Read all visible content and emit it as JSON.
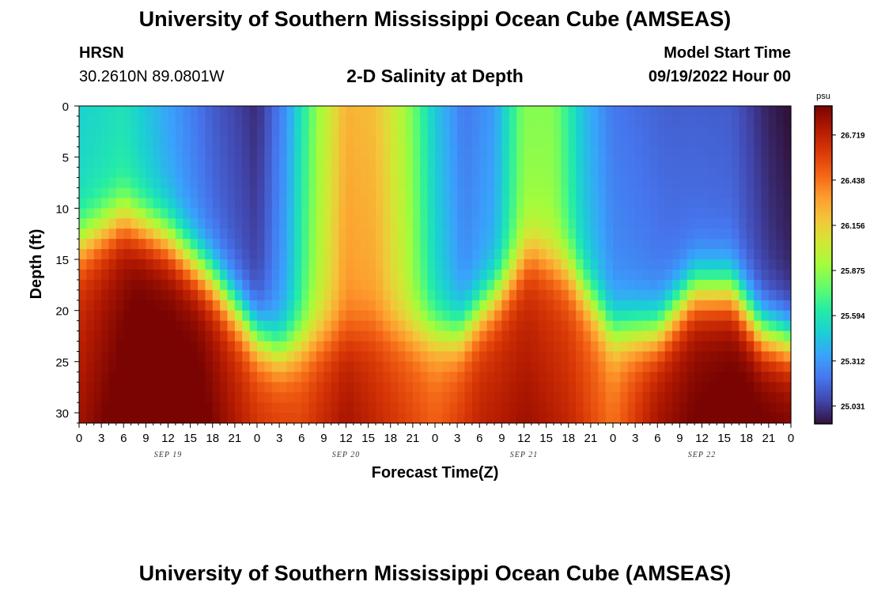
{
  "header": {
    "title": "University of Southern Mississippi Ocean Cube (AMSEAS)",
    "station_name": "HRSN",
    "coordinates": "30.2610N  89.0801W",
    "plot_title": "2-D Salinity at Depth",
    "model_start_label": "Model Start Time",
    "model_start_value": "09/19/2022 Hour 00"
  },
  "footer": {
    "title": "University of Southern Mississippi Ocean Cube (AMSEAS)"
  },
  "chart_data": {
    "type": "heatmap",
    "title": "2-D Salinity at Depth",
    "xlabel": "Forecast Time(Z)",
    "ylabel": "Depth (ft)",
    "x_range_hours": [
      0,
      96
    ],
    "ylim": [
      0,
      31
    ],
    "y_inverted": true,
    "x_tick_labels": [
      "0",
      "3",
      "6",
      "9",
      "12",
      "15",
      "18",
      "21",
      "0",
      "3",
      "6",
      "9",
      "12",
      "15",
      "18",
      "21",
      "0",
      "3",
      "6",
      "9",
      "12",
      "15",
      "18",
      "21",
      "0",
      "3",
      "6",
      "9",
      "12",
      "15",
      "18",
      "21",
      "0"
    ],
    "y_ticks": [
      0,
      5,
      10,
      15,
      20,
      25,
      30
    ],
    "y_tick_labels": [
      "0",
      "5",
      "10",
      "15",
      "20",
      "25",
      "30"
    ],
    "date_labels": [
      {
        "label": "SEP 19",
        "hour": 12
      },
      {
        "label": "SEP 20",
        "hour": 36
      },
      {
        "label": "SEP 21",
        "hour": 60
      },
      {
        "label": "SEP 22",
        "hour": 84
      }
    ],
    "colorbar": {
      "unit": "psu",
      "min": 24.92,
      "max": 26.9,
      "labels": [
        "26.719",
        "26.438",
        "26.156",
        "25.875",
        "25.594",
        "25.312",
        "25.031"
      ],
      "colormap": [
        "#30123b",
        "#4145ab",
        "#4675ed",
        "#39a2fc",
        "#1bcfd4",
        "#24eca6",
        "#61fc6c",
        "#a4fc3b",
        "#d1e834",
        "#f3c63a",
        "#fe9b2d",
        "#f36315",
        "#d93806",
        "#b11901",
        "#7a0402"
      ]
    },
    "halocline_depth_ft_by_hour": [
      {
        "hour": 0,
        "depth": 13.5
      },
      {
        "hour": 6,
        "depth": 11
      },
      {
        "hour": 12,
        "depth": 13
      },
      {
        "hour": 18,
        "depth": 17
      },
      {
        "hour": 24,
        "depth": 22.5
      },
      {
        "hour": 27,
        "depth": 24
      },
      {
        "hour": 33,
        "depth": 22.5
      },
      {
        "hour": 39,
        "depth": 21.5
      },
      {
        "hour": 45,
        "depth": 22
      },
      {
        "hour": 51,
        "depth": 22.5
      },
      {
        "hour": 57,
        "depth": 18
      },
      {
        "hour": 61,
        "depth": 14
      },
      {
        "hour": 66,
        "depth": 16
      },
      {
        "hour": 72,
        "depth": 22
      },
      {
        "hour": 78,
        "depth": 22
      },
      {
        "hour": 83,
        "depth": 18
      },
      {
        "hour": 88,
        "depth": 18
      },
      {
        "hour": 92,
        "depth": 22
      },
      {
        "hour": 96,
        "depth": 23
      }
    ],
    "upper_salinity_psu_by_hour": [
      {
        "hour": 0,
        "psu": 25.55
      },
      {
        "hour": 6,
        "psu": 25.62
      },
      {
        "hour": 12,
        "psu": 25.4
      },
      {
        "hour": 18,
        "psu": 25.2
      },
      {
        "hour": 24,
        "psu": 25.08
      },
      {
        "hour": 28,
        "psu": 25.4
      },
      {
        "hour": 32,
        "psu": 25.95
      },
      {
        "hour": 36,
        "psu": 26.35
      },
      {
        "hour": 40,
        "psu": 26.3
      },
      {
        "hour": 44,
        "psu": 26.0
      },
      {
        "hour": 48,
        "psu": 25.55
      },
      {
        "hour": 52,
        "psu": 25.3
      },
      {
        "hour": 56,
        "psu": 25.4
      },
      {
        "hour": 60,
        "psu": 25.9
      },
      {
        "hour": 64,
        "psu": 25.9
      },
      {
        "hour": 68,
        "psu": 25.5
      },
      {
        "hour": 72,
        "psu": 25.3
      },
      {
        "hour": 80,
        "psu": 25.22
      },
      {
        "hour": 88,
        "psu": 25.2
      },
      {
        "hour": 93,
        "psu": 25.05
      },
      {
        "hour": 96,
        "psu": 25.0
      }
    ],
    "deep_salinity_psu_by_hour": [
      {
        "hour": 0,
        "psu": 26.62
      },
      {
        "hour": 8,
        "psu": 26.85
      },
      {
        "hour": 16,
        "psu": 26.82
      },
      {
        "hour": 24,
        "psu": 26.55
      },
      {
        "hour": 30,
        "psu": 26.5
      },
      {
        "hour": 36,
        "psu": 26.7
      },
      {
        "hour": 42,
        "psu": 26.55
      },
      {
        "hour": 48,
        "psu": 26.4
      },
      {
        "hour": 54,
        "psu": 26.6
      },
      {
        "hour": 60,
        "psu": 26.65
      },
      {
        "hour": 66,
        "psu": 26.55
      },
      {
        "hour": 72,
        "psu": 26.35
      },
      {
        "hour": 78,
        "psu": 26.7
      },
      {
        "hour": 84,
        "psu": 26.8
      },
      {
        "hour": 90,
        "psu": 26.85
      },
      {
        "hour": 96,
        "psu": 26.8
      }
    ]
  }
}
